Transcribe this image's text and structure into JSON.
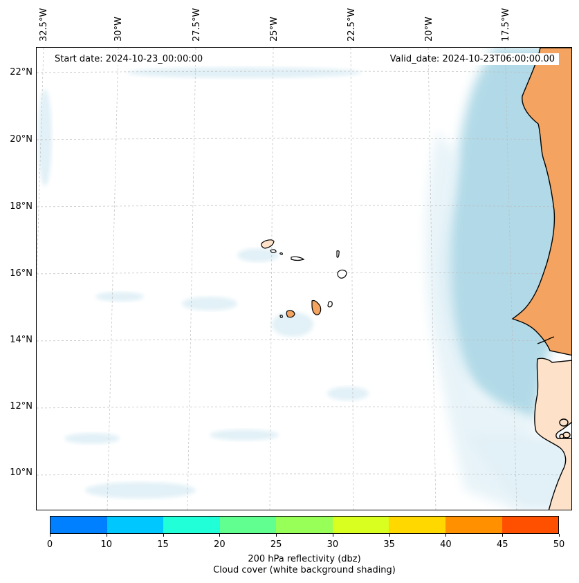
{
  "map": {
    "start_date": "Start date: 2024-10-23_00:00:00",
    "valid_date": "Valid_date: 2024-10-23T06:00:00.00",
    "lon_labels": [
      "32.5°W",
      "30°W",
      "27.5°W",
      "25°W",
      "22.5°W",
      "20°W",
      "17.5°W"
    ],
    "lat_labels": [
      "22°N",
      "20°N",
      "18°N",
      "16°N",
      "14°N",
      "12°N",
      "10°N"
    ],
    "colors": {
      "land": "#f4a460",
      "land_cloudy": "#fde1c8",
      "cloud": "#add8e6",
      "cloud_light": "#e2f1f7",
      "gridline": "#bdbdbd",
      "coast": "#000000"
    }
  },
  "colorbar": {
    "colors": [
      "#0080ff",
      "#00c8ff",
      "#20ffd8",
      "#60ff90",
      "#98ff58",
      "#d8ff20",
      "#ffd800",
      "#ff9000",
      "#ff5000"
    ],
    "ticks": [
      "0",
      "10",
      "15",
      "20",
      "25",
      "30",
      "35",
      "40",
      "45",
      "50"
    ],
    "caption_line1": "200 hPa reflectivity (dbz)",
    "caption_line2": "Cloud cover (white background shading)"
  }
}
